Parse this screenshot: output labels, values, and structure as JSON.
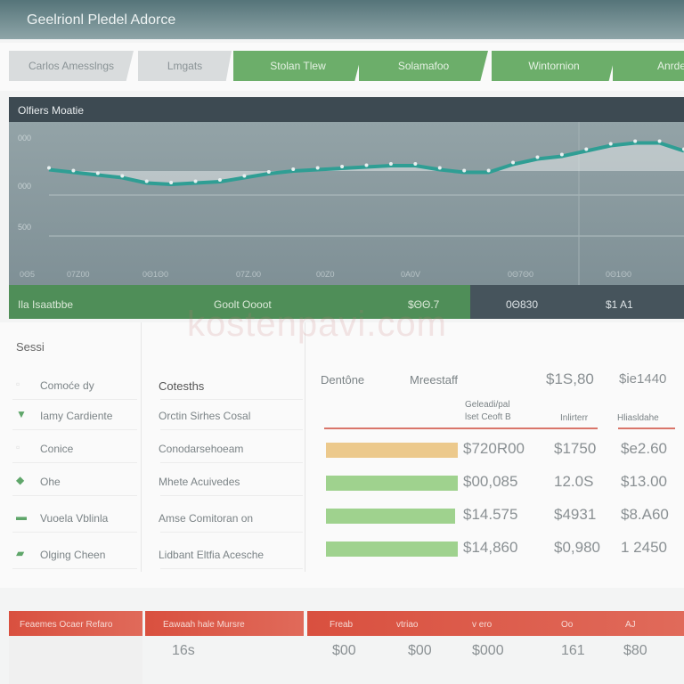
{
  "header": {
    "title": "Geelrionl Pledel Adorce"
  },
  "tabs": [
    {
      "label": "Carlos Amesslngs",
      "style": "gray"
    },
    {
      "label": "Lmgats",
      "style": "gray"
    },
    {
      "label": "Stolan Tlew",
      "style": "green"
    },
    {
      "label": "Solamafoo",
      "style": "green"
    },
    {
      "label": "Wintornion",
      "style": "green"
    },
    {
      "label": "Anrde",
      "style": "green"
    }
  ],
  "chart_panel": {
    "title": "Olfiers Moatie"
  },
  "chart_data": {
    "type": "area",
    "title": "Olfiers Moatie",
    "y_ticks": [
      "000",
      "000",
      "500"
    ],
    "x_ticks": [
      "0Θ5",
      "07Z00",
      "0Θ1Θ0",
      "07Z.00",
      "00Z0",
      "0A0V",
      "0Θ7Θ0",
      "0Θ1Θ0"
    ],
    "ylim": [
      0,
      100
    ],
    "values": [
      73,
      71,
      69,
      67,
      63,
      62,
      63,
      64,
      67,
      70,
      72,
      73,
      74,
      75,
      76,
      76,
      73,
      71,
      71,
      77,
      81,
      83,
      87,
      91,
      93,
      93,
      87
    ],
    "line_color": "#2f9e94"
  },
  "summary_band": {
    "items": [
      "Ila Isaatbbe",
      "Goolt Oooot",
      "$ΘΘ.7",
      "0Θ830",
      "$1 A1"
    ]
  },
  "watermark": "kostenpavi.com",
  "section": {
    "title": "Sessi"
  },
  "left_list": [
    {
      "label": "Comoće dy",
      "icon": "square-icon"
    },
    {
      "label": "Iamy Cardiente",
      "icon": "funnel-icon"
    },
    {
      "label": "Conice",
      "icon": "square-icon"
    },
    {
      "label": "Ohe",
      "icon": "leaf-icon"
    },
    {
      "label": "Vuoela Vblinla",
      "icon": "card-icon"
    },
    {
      "label": "Olging Cheen",
      "icon": "folder-icon"
    }
  ],
  "mid_list": [
    "Cotesths",
    "Orctin Sirhes Cosal",
    "Conodarsehoeam",
    "Mhete Acuivedes",
    "Amse Comitoran on",
    "Lidbant Eltfia Acesche"
  ],
  "table": {
    "headers": [
      "Dentône",
      "Mreestaff",
      "$1S,80",
      "$ie1440"
    ],
    "subheaders": [
      "Geleadi/pal\nlset Ceoft B",
      "Inlirterr",
      "Hliasldahe"
    ],
    "rows": [
      {
        "fill": 100,
        "color": "#ecc98c",
        "v1": "$720R00",
        "v2": "$1750",
        "v3": "$e2.60"
      },
      {
        "fill": 100,
        "color": "#9fd28e",
        "v1": "$00,085",
        "v2": "12.0S",
        "v3": "$13.00"
      },
      {
        "fill": 98,
        "color": "#9fd28e",
        "v1": "$14.575",
        "v2": "$4931",
        "v3": "$8.A60"
      },
      {
        "fill": 100,
        "color": "#9fd28e",
        "v1": "$14,860",
        "v2": "$0,980",
        "v3": "1 2450"
      }
    ]
  },
  "bottom": {
    "headers": [
      "Feaemes Ocaer Refaro",
      "Eawaah hale Mursre",
      "Freab",
      "vtriao",
      "v ero",
      "Oo",
      "AJ"
    ],
    "values": [
      "16s",
      "$00",
      "$00",
      "$000",
      "161",
      "$80"
    ]
  }
}
